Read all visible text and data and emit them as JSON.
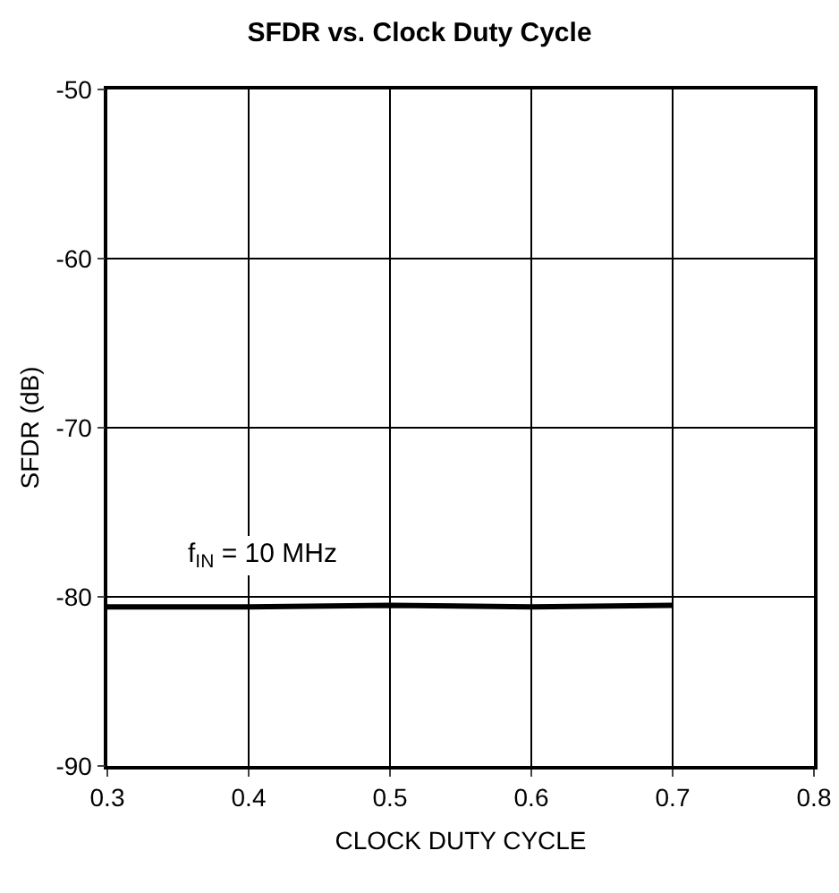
{
  "chart_data": {
    "type": "line",
    "title": "SFDR vs. Clock Duty Cycle",
    "xlabel": "CLOCK DUTY CYCLE",
    "ylabel": "SFDR (dB)",
    "x": [
      0.3,
      0.4,
      0.5,
      0.6,
      0.7
    ],
    "series": [
      {
        "color": "#000000",
        "values": [
          -80.6,
          -80.6,
          -80.5,
          -80.6,
          -80.5
        ]
      }
    ],
    "xlim": [
      0.3,
      0.8
    ],
    "xticks": [
      0.3,
      0.4,
      0.5,
      0.6,
      0.7,
      0.8
    ],
    "ylim": [
      -90,
      -50
    ],
    "yticks": [
      -90,
      -80,
      -70,
      -60,
      -50
    ],
    "grid": true,
    "legend": false,
    "marker": "none",
    "line_style": "solid",
    "annotations": [
      "f$_{IN}$ = 10 MHz"
    ]
  }
}
